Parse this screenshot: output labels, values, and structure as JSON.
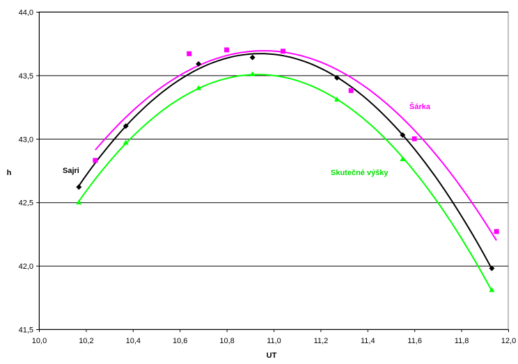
{
  "chart_data": {
    "type": "scatter",
    "xlabel": "UT",
    "ylabel": "h",
    "xlim": [
      10.0,
      12.0
    ],
    "ylim": [
      41.5,
      44.0
    ],
    "x_ticks": [
      "10,0",
      "10,2",
      "10,4",
      "10,6",
      "10,8",
      "11,0",
      "11,2",
      "11,4",
      "11,6",
      "11,8",
      "12,0"
    ],
    "y_ticks": [
      "41,5",
      "42,0",
      "42,5",
      "43,0",
      "43,5",
      "44,0"
    ],
    "grid": "horizontal",
    "trendline": "polynomial order 2",
    "series": [
      {
        "name": "Sajri",
        "color": "#000000",
        "marker": "diamond",
        "x": [
          10.17,
          10.37,
          10.68,
          10.91,
          11.27,
          11.55,
          11.93
        ],
        "y": [
          42.62,
          43.1,
          43.59,
          43.64,
          43.48,
          43.03,
          41.98
        ]
      },
      {
        "name": "Šárka",
        "color": "#ff00ff",
        "marker": "square",
        "x": [
          10.24,
          10.64,
          10.8,
          11.04,
          11.33,
          11.6,
          11.95
        ],
        "y": [
          42.83,
          43.67,
          43.7,
          43.69,
          43.38,
          43.0,
          42.27
        ]
      },
      {
        "name": "Skutečné výšky",
        "color": "#00ff00",
        "marker": "triangle",
        "x": [
          10.17,
          10.37,
          10.68,
          10.91,
          11.27,
          11.55,
          11.93
        ],
        "y": [
          42.5,
          42.97,
          43.4,
          43.51,
          43.31,
          42.84,
          41.81
        ]
      }
    ]
  }
}
